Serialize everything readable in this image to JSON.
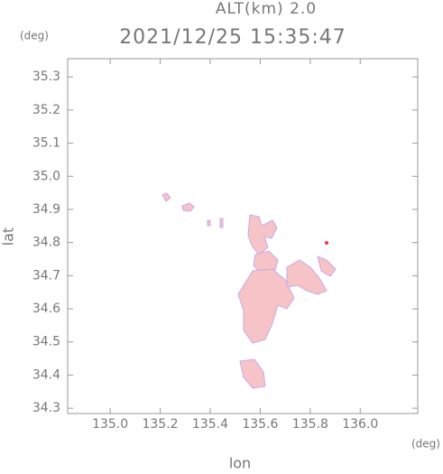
{
  "chart_data": {
    "type": "map",
    "title": "2021/12/25 15:35:47",
    "subtitle": "ALT(km) 2.0",
    "x_label": "lon",
    "x_unit": "(deg)",
    "y_label": "lat",
    "y_unit": "(deg)",
    "xlim": [
      134.83,
      136.23
    ],
    "xticks": [
      {
        "value": 135.0,
        "label": "135.0"
      },
      135.2,
      135.4,
      135.6,
      135.8,
      {
        "value": 136.0,
        "label": "136.0"
      }
    ],
    "ylim": [
      34.284,
      35.355
    ],
    "yticks": [
      34.3,
      34.4,
      34.5,
      34.6,
      34.7,
      34.8,
      34.9,
      {
        "value": 35.0,
        "label": "35.0"
      },
      35.1,
      35.2,
      35.3
    ]
  }
}
